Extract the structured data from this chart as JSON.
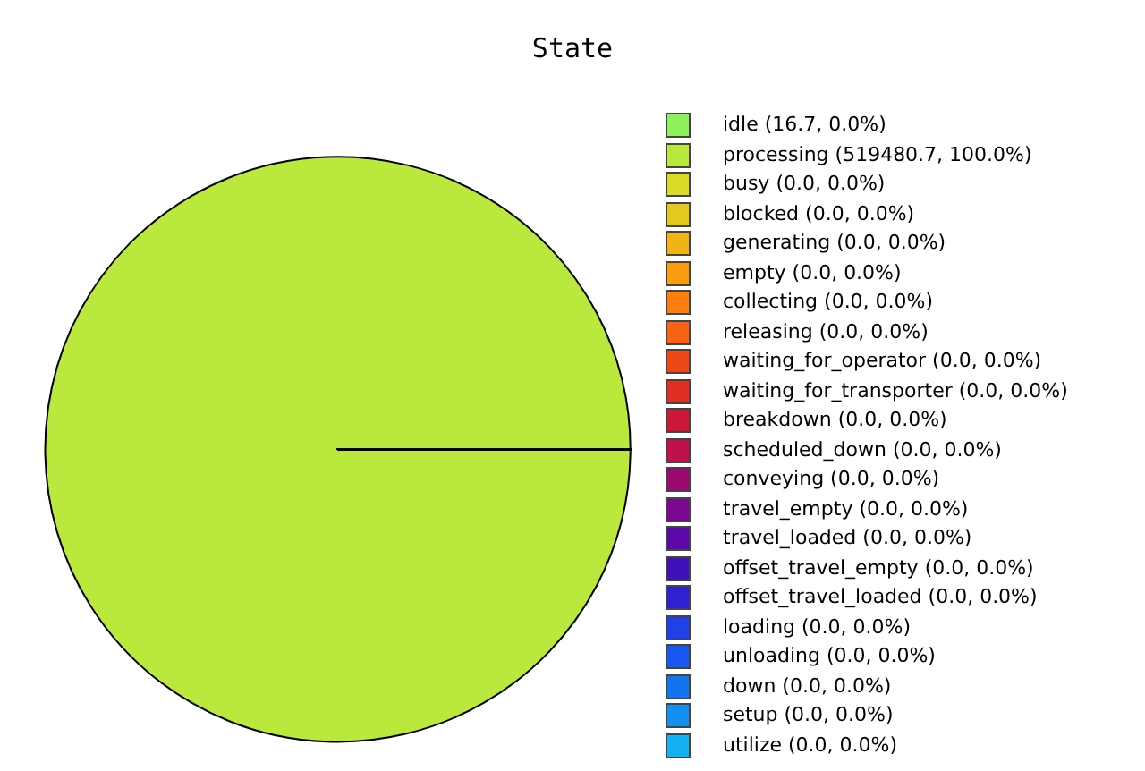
{
  "chart_data": {
    "type": "pie",
    "title": "State",
    "categories": [
      "idle (16.7, 0.0%)",
      "processing (519480.7, 100.0%)",
      "busy (0.0, 0.0%)",
      "blocked (0.0, 0.0%)",
      "generating (0.0, 0.0%)",
      "empty (0.0, 0.0%)",
      "collecting (0.0, 0.0%)",
      "releasing (0.0, 0.0%)",
      "waiting_for_operator (0.0, 0.0%)",
      "waiting_for_transporter (0.0, 0.0%)",
      "breakdown (0.0, 0.0%)",
      "scheduled_down (0.0, 0.0%)",
      "conveying (0.0, 0.0%)",
      "travel_empty (0.0, 0.0%)",
      "travel_loaded (0.0, 0.0%)",
      "offset_travel_empty (0.0, 0.0%)",
      "offset_travel_loaded (0.0, 0.0%)",
      "loading (0.0, 0.0%)",
      "unloading (0.0, 0.0%)",
      "down (0.0, 0.0%)",
      "setup (0.0, 0.0%)",
      "utilize (0.0, 0.0%)"
    ],
    "values": [
      16.7,
      519480.7,
      0,
      0,
      0,
      0,
      0,
      0,
      0,
      0,
      0,
      0,
      0,
      0,
      0,
      0,
      0,
      0,
      0,
      0,
      0,
      0
    ],
    "colors": [
      "#8ef05a",
      "#bae83c",
      "#d8dc28",
      "#e4c81e",
      "#f0b418",
      "#f89c10",
      "#fc8010",
      "#f86414",
      "#ec4818",
      "#e03024",
      "#cc1838",
      "#c0104c",
      "#9c0870",
      "#7c0890",
      "#5c08a8",
      "#4010b8",
      "#3020d0",
      "#2040e8",
      "#1858f0",
      "#1474f0",
      "#1490f0",
      "#14b0f0"
    ],
    "legend": "right"
  }
}
